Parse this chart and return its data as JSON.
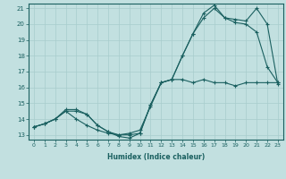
{
  "xlabel": "Humidex (Indice chaleur)",
  "ylabel": "",
  "bg_color": "#c2e0e0",
  "grid_color": "#a8cccc",
  "line_color": "#1a6060",
  "xlim": [
    -0.5,
    23.5
  ],
  "ylim": [
    12.7,
    21.3
  ],
  "xticks": [
    0,
    1,
    2,
    3,
    4,
    5,
    6,
    7,
    8,
    9,
    10,
    11,
    12,
    13,
    14,
    15,
    16,
    17,
    18,
    19,
    20,
    21,
    22,
    23
  ],
  "yticks": [
    13,
    14,
    15,
    16,
    17,
    18,
    19,
    20,
    21
  ],
  "line1_x": [
    0,
    1,
    2,
    3,
    4,
    5,
    6,
    7,
    8,
    9,
    10,
    11,
    12,
    13,
    14,
    15,
    16,
    17,
    18,
    19,
    20,
    21,
    22,
    23
  ],
  "line1_y": [
    13.5,
    13.7,
    14.0,
    14.5,
    14.0,
    13.6,
    13.3,
    13.1,
    13.0,
    13.1,
    13.3,
    14.8,
    16.3,
    16.5,
    16.5,
    16.3,
    16.5,
    16.3,
    16.3,
    16.1,
    16.3,
    16.3,
    16.3,
    16.3
  ],
  "line2_x": [
    0,
    1,
    2,
    3,
    4,
    5,
    6,
    7,
    8,
    9,
    10,
    11,
    12,
    13,
    14,
    15,
    16,
    17,
    18,
    19,
    20,
    21,
    22,
    23
  ],
  "line2_y": [
    13.5,
    13.7,
    14.0,
    14.5,
    14.5,
    14.3,
    13.6,
    13.2,
    13.0,
    13.0,
    13.1,
    14.9,
    16.3,
    16.5,
    18.0,
    19.4,
    20.4,
    21.0,
    20.4,
    20.1,
    20.0,
    19.5,
    17.3,
    16.3
  ],
  "line3_x": [
    0,
    1,
    2,
    3,
    4,
    5,
    6,
    7,
    8,
    9,
    10,
    11,
    12,
    13,
    14,
    15,
    16,
    17,
    18,
    19,
    20,
    21,
    22,
    23
  ],
  "line3_y": [
    13.5,
    13.7,
    14.0,
    14.6,
    14.6,
    14.3,
    13.6,
    13.2,
    12.9,
    12.8,
    13.1,
    14.9,
    16.3,
    16.5,
    18.0,
    19.4,
    20.7,
    21.2,
    20.4,
    20.3,
    20.2,
    21.0,
    20.0,
    16.2
  ]
}
